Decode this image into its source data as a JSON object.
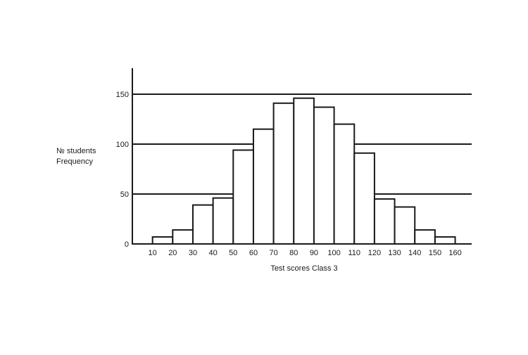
{
  "chart_data": {
    "type": "bar",
    "title": "",
    "xlabel": "Test scores Class 3",
    "ylabel_lines": [
      "№ students",
      "Frequency"
    ],
    "x_tick_labels": [
      "10",
      "20",
      "30",
      "40",
      "50",
      "60",
      "70",
      "80",
      "90",
      "100",
      "110",
      "120",
      "130",
      "140",
      "150",
      "160"
    ],
    "bin_edges": [
      10,
      20,
      30,
      40,
      50,
      60,
      70,
      80,
      90,
      100,
      110,
      120,
      130,
      140,
      150,
      160
    ],
    "values": [
      7,
      14,
      39,
      46,
      94,
      115,
      141,
      146,
      137,
      120,
      91,
      45,
      37,
      14,
      7
    ],
    "y_ticks": [
      0,
      50,
      100,
      150
    ],
    "ylim": [
      0,
      175
    ],
    "xlim": [
      0,
      170
    ],
    "grid": "horizontal",
    "legend": "none",
    "colors": {
      "bar_fill": "#ffffff",
      "bar_stroke": "#1a1a1a",
      "axis": "#1a1a1a",
      "grid": "#1a1a1a",
      "background": "#ffffff"
    }
  }
}
